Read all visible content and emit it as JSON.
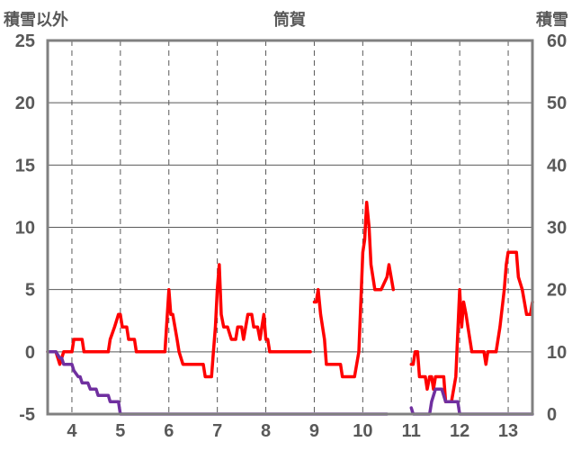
{
  "chart_data": {
    "type": "line",
    "title": "筒賀",
    "left_axis_label": "積雪以外",
    "right_axis_label": "積雪",
    "left_ylim": [
      -5,
      25
    ],
    "left_ticks": [
      "25",
      "20",
      "15",
      "10",
      "5",
      "0",
      "-5"
    ],
    "right_ylim": [
      0,
      60
    ],
    "right_ticks": [
      "60",
      "50",
      "40",
      "30",
      "20",
      "10",
      "0"
    ],
    "xlim": [
      3.5,
      13.5
    ],
    "x_ticks": [
      "4",
      "5",
      "6",
      "7",
      "8",
      "9",
      "10",
      "11",
      "12",
      "13"
    ],
    "grid": true,
    "colors": {
      "temperature": "#ff0000",
      "snow_depth": "#7030a0",
      "frame": "#808080",
      "grid": "#595959"
    },
    "series": [
      {
        "axis": "left",
        "color": "#ff0000",
        "segments": [
          [
            [
              3.5,
              0
            ],
            [
              3.67,
              0
            ],
            [
              3.75,
              -1
            ],
            [
              3.83,
              0
            ],
            [
              4.0,
              0
            ],
            [
              4.04,
              1
            ],
            [
              4.21,
              1
            ],
            [
              4.25,
              0
            ],
            [
              4.5,
              0
            ],
            [
              4.75,
              0
            ],
            [
              4.79,
              1
            ],
            [
              4.88,
              2
            ],
            [
              4.96,
              3
            ],
            [
              5.0,
              3
            ],
            [
              5.04,
              2
            ],
            [
              5.13,
              2
            ],
            [
              5.17,
              1
            ],
            [
              5.29,
              1
            ],
            [
              5.33,
              0
            ],
            [
              5.5,
              0
            ],
            [
              5.75,
              0
            ],
            [
              5.92,
              0
            ],
            [
              6.0,
              5
            ],
            [
              6.04,
              3
            ],
            [
              6.08,
              3
            ],
            [
              6.17,
              1
            ],
            [
              6.21,
              0
            ],
            [
              6.29,
              -1
            ],
            [
              6.5,
              -1
            ],
            [
              6.71,
              -1
            ],
            [
              6.75,
              -2
            ],
            [
              6.88,
              -2
            ],
            [
              6.92,
              0
            ],
            [
              6.96,
              2
            ],
            [
              7.0,
              5
            ],
            [
              7.04,
              7
            ],
            [
              7.08,
              3
            ],
            [
              7.13,
              2
            ],
            [
              7.21,
              2
            ],
            [
              7.29,
              1
            ],
            [
              7.38,
              1
            ],
            [
              7.42,
              2
            ],
            [
              7.5,
              2
            ],
            [
              7.54,
              1
            ],
            [
              7.63,
              3
            ],
            [
              7.71,
              3
            ],
            [
              7.75,
              2
            ],
            [
              7.83,
              2
            ],
            [
              7.88,
              1
            ],
            [
              7.92,
              2
            ],
            [
              7.96,
              3
            ],
            [
              8.0,
              1
            ],
            [
              8.04,
              1
            ],
            [
              8.08,
              0
            ],
            [
              8.5,
              0
            ],
            [
              8.92,
              0
            ]
          ],
          [
            [
              9.0,
              4
            ],
            [
              9.04,
              4
            ],
            [
              9.08,
              5
            ],
            [
              9.13,
              3
            ],
            [
              9.21,
              1
            ],
            [
              9.25,
              -1
            ],
            [
              9.42,
              -1
            ],
            [
              9.54,
              -1
            ],
            [
              9.58,
              -2
            ],
            [
              9.83,
              -2
            ],
            [
              9.92,
              0
            ],
            [
              10.0,
              8
            ],
            [
              10.04,
              9
            ],
            [
              10.08,
              12
            ],
            [
              10.13,
              10
            ],
            [
              10.17,
              7
            ],
            [
              10.25,
              5
            ],
            [
              10.38,
              5
            ],
            [
              10.5,
              6
            ],
            [
              10.54,
              7
            ],
            [
              10.63,
              5
            ]
          ],
          [
            [
              11.0,
              -1
            ],
            [
              11.04,
              -1
            ],
            [
              11.08,
              0
            ],
            [
              11.13,
              0
            ],
            [
              11.17,
              -2
            ],
            [
              11.29,
              -2
            ],
            [
              11.33,
              -3
            ],
            [
              11.38,
              -2
            ],
            [
              11.42,
              -2
            ],
            [
              11.46,
              -3
            ],
            [
              11.5,
              -2
            ],
            [
              11.67,
              -2
            ],
            [
              11.71,
              -4
            ],
            [
              11.83,
              -4
            ],
            [
              11.92,
              -2
            ],
            [
              12.0,
              5
            ],
            [
              12.04,
              2
            ],
            [
              12.08,
              4
            ],
            [
              12.13,
              3
            ],
            [
              12.17,
              2
            ],
            [
              12.25,
              0
            ],
            [
              12.5,
              0
            ],
            [
              12.54,
              -1
            ],
            [
              12.58,
              0
            ],
            [
              12.75,
              0
            ],
            [
              12.83,
              2
            ],
            [
              12.92,
              5
            ],
            [
              12.96,
              7
            ],
            [
              13.0,
              8
            ],
            [
              13.17,
              8
            ],
            [
              13.21,
              6
            ],
            [
              13.29,
              5
            ],
            [
              13.38,
              3
            ],
            [
              13.46,
              3
            ],
            [
              13.5,
              4
            ]
          ]
        ]
      },
      {
        "axis": "right",
        "color": "#7030a0",
        "segments": [
          [
            [
              3.5,
              10
            ],
            [
              3.67,
              10
            ],
            [
              3.75,
              9
            ],
            [
              3.79,
              9
            ],
            [
              3.83,
              8
            ],
            [
              4.0,
              8
            ],
            [
              4.04,
              7
            ],
            [
              4.13,
              6
            ],
            [
              4.17,
              6
            ],
            [
              4.21,
              5
            ],
            [
              4.33,
              5
            ],
            [
              4.38,
              4
            ],
            [
              4.5,
              4
            ],
            [
              4.54,
              3
            ],
            [
              4.75,
              3
            ],
            [
              4.79,
              2
            ],
            [
              4.96,
              2
            ],
            [
              5.0,
              0
            ],
            [
              5.5,
              0
            ],
            [
              6.0,
              0
            ],
            [
              7.0,
              0
            ],
            [
              8.0,
              0
            ],
            [
              9.0,
              0
            ],
            [
              10.0,
              0
            ],
            [
              10.5,
              0
            ]
          ],
          [
            [
              11.0,
              1
            ],
            [
              11.04,
              0
            ],
            [
              11.38,
              0
            ],
            [
              11.42,
              2
            ],
            [
              11.5,
              4
            ],
            [
              11.63,
              4
            ],
            [
              11.71,
              2
            ],
            [
              11.96,
              2
            ],
            [
              12.0,
              0
            ],
            [
              12.5,
              0
            ],
            [
              13.0,
              0
            ],
            [
              13.5,
              0
            ]
          ]
        ]
      }
    ]
  }
}
